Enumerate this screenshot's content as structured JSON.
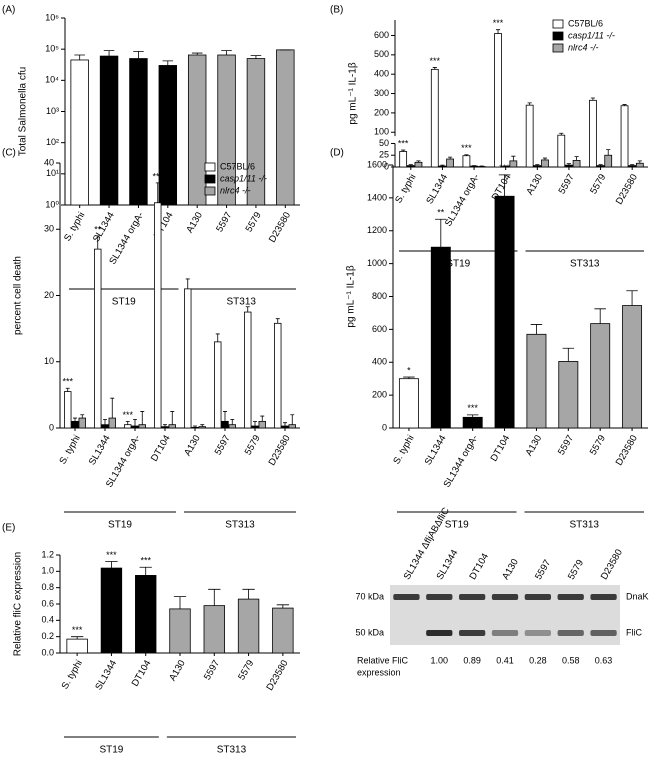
{
  "chart_data": [
    {
      "type": "bar",
      "label": "(A)",
      "ylabel": "Total Salmonella cfu",
      "log": true,
      "categories": [
        "S. typhi",
        "SL1344",
        "SL1344 orgA-",
        "DT104",
        "A130",
        "5597",
        "5579",
        "D23580"
      ],
      "values": [
        45000,
        60000,
        50000,
        30000,
        65000,
        65000,
        50000,
        95000
      ],
      "errors": [
        20000,
        30000,
        35000,
        12000,
        10000,
        25000,
        12000,
        0
      ],
      "colors": [
        "#ffffff",
        "#000000",
        "#000000",
        "#000000",
        "#a6a6a6",
        "#a6a6a6",
        "#a6a6a6",
        "#a6a6a6"
      ],
      "ylim": [
        1,
        1000000
      ],
      "yticks": [
        {
          "value": 1,
          "label": "10⁰"
        },
        {
          "value": 10,
          "label": "10¹"
        },
        {
          "value": 100,
          "label": "10²"
        },
        {
          "value": 1000,
          "label": "10³"
        },
        {
          "value": 10000,
          "label": "10⁴"
        },
        {
          "value": 100000,
          "label": "10⁵"
        },
        {
          "value": 1000000,
          "label": "10⁶"
        }
      ],
      "groups": [
        {
          "name": "ST19",
          "n": 4
        },
        {
          "name": "ST313",
          "n": 4
        }
      ]
    },
    {
      "type": "bar",
      "label": "(B)",
      "ylabel": "pg mL⁻¹ IL-1β",
      "categories": [
        "S. typhi",
        "SL1344",
        "SL1344 orgA-",
        "DT104",
        "A130",
        "5597",
        "5579",
        "D23580"
      ],
      "series": [
        {
          "name": "C57BL/6",
          "color": "#ffffff",
          "values": [
            33,
            425,
            24,
            610,
            240,
            85,
            265,
            237
          ],
          "errors": [
            3,
            10,
            2,
            20,
            12,
            10,
            12,
            6
          ]
        },
        {
          "name": "casp1/11 -/-",
          "color": "#000000",
          "values": [
            3,
            2,
            2,
            1,
            3,
            4,
            3,
            3
          ],
          "errors": [
            2,
            2,
            1,
            1,
            2,
            3,
            2,
            2
          ]
        },
        {
          "name": "nlrc4 -/-",
          "color": "#a6a6a6",
          "values": [
            10,
            17,
            1,
            13,
            15,
            14,
            25,
            8
          ],
          "errors": [
            3,
            4,
            1,
            10,
            4,
            8,
            12,
            5
          ]
        }
      ],
      "annotations": [
        "***",
        "***",
        "***",
        "***",
        null,
        null,
        null,
        null
      ],
      "ylim": [
        0,
        680
      ],
      "ybreak": [
        50,
        80
      ],
      "yticks": [
        0,
        25,
        50,
        100,
        200,
        300,
        400,
        500,
        600
      ],
      "legend": "upper right",
      "groups": [
        {
          "name": "ST19",
          "n": 4
        },
        {
          "name": "ST313",
          "n": 4
        }
      ]
    },
    {
      "type": "bar",
      "label": "(C)",
      "ylabel": "percent cell death",
      "categories": [
        "S. typhi",
        "SL1344",
        "SL1344 orgA-",
        "DT104",
        "A130",
        "5597",
        "5579",
        "D23580"
      ],
      "series": [
        {
          "name": "C57BL/6",
          "color": "#ffffff",
          "values": [
            5.5,
            27,
            0.5,
            34,
            21,
            13,
            17.5,
            15.8
          ],
          "errors": [
            0.5,
            2,
            0.5,
            3,
            1.5,
            1.2,
            0.8,
            0.7
          ]
        },
        {
          "name": "casp1/11 -/-",
          "color": "#000000",
          "values": [
            1,
            0.5,
            0.3,
            0.2,
            0.1,
            1,
            0.3,
            0.3
          ],
          "errors": [
            0.5,
            0.8,
            1,
            0.3,
            0.2,
            1.5,
            0.7,
            0.5
          ]
        },
        {
          "name": "nlrc4 -/-",
          "color": "#a6a6a6",
          "values": [
            1.5,
            1.5,
            0.5,
            0.5,
            0.2,
            0.5,
            1,
            0.5
          ],
          "errors": [
            0.5,
            3,
            2,
            2,
            0.3,
            0.8,
            0.8,
            1.5
          ]
        }
      ],
      "annotations": [
        "***",
        "**",
        "***",
        "***",
        null,
        null,
        null,
        null
      ],
      "ylim": [
        0,
        40
      ],
      "yticks": [
        0,
        10,
        20,
        30,
        40
      ],
      "legend": "upper right",
      "groups": [
        {
          "name": "ST19",
          "n": 4
        },
        {
          "name": "ST313",
          "n": 4
        }
      ]
    },
    {
      "type": "bar",
      "label": "(D)",
      "ylabel": "pg mL⁻¹ IL-1β",
      "categories": [
        "S. typhi",
        "SL1344",
        "SL1344 orgA-",
        "DT104",
        "A130",
        "5597",
        "5579",
        "D23580"
      ],
      "values": [
        300,
        1100,
        65,
        1410,
        570,
        405,
        635,
        745
      ],
      "errors": [
        10,
        170,
        15,
        130,
        60,
        80,
        90,
        90
      ],
      "colors": [
        "#ffffff",
        "#000000",
        "#000000",
        "#000000",
        "#a6a6a6",
        "#a6a6a6",
        "#a6a6a6",
        "#a6a6a6"
      ],
      "annotations": [
        "*",
        "**",
        "***",
        "***",
        null,
        null,
        null,
        null
      ],
      "ylim": [
        0,
        1600
      ],
      "yticks": [
        0,
        200,
        400,
        600,
        800,
        1000,
        1200,
        1400,
        1600
      ],
      "groups": [
        {
          "name": "ST19",
          "n": 4
        },
        {
          "name": "ST313",
          "n": 4
        }
      ]
    },
    {
      "type": "bar",
      "label": "(E)",
      "ylabel": "Relative fliC expression",
      "categories": [
        "S. typhi",
        "SL1344",
        "DT104",
        "A130",
        "5597",
        "5579",
        "D23580"
      ],
      "values": [
        0.17,
        1.04,
        0.95,
        0.54,
        0.58,
        0.66,
        0.55
      ],
      "errors": [
        0.03,
        0.08,
        0.1,
        0.15,
        0.2,
        0.12,
        0.04
      ],
      "colors": [
        "#ffffff",
        "#000000",
        "#000000",
        "#a6a6a6",
        "#a6a6a6",
        "#a6a6a6",
        "#a6a6a6"
      ],
      "annotations": [
        "***",
        "***",
        "***",
        null,
        null,
        null,
        null
      ],
      "ylim": [
        0,
        1.2
      ],
      "yticks": [
        {
          "value": 0,
          "label": "0.0"
        },
        0.2,
        0.4,
        0.6,
        0.8,
        {
          "value": 1,
          "label": "1.0"
        },
        1.2
      ],
      "groups": [
        {
          "name": "ST19",
          "n": 3
        },
        {
          "name": "ST313",
          "n": 4
        }
      ]
    },
    {
      "type": "blot",
      "lanes": [
        "SL1344 ΔfljABΔfliC",
        "SL1344",
        "DT104",
        "A130",
        "5597",
        "5579",
        "D23580"
      ],
      "markers": [
        "70 kDa",
        "50 kDa"
      ],
      "bands": [
        "DnaK",
        "FliC"
      ],
      "value_title": [
        "Relative  FliC",
        "expression"
      ],
      "values": [
        null,
        1,
        0.89,
        0.41,
        0.28,
        0.58,
        0.63
      ],
      "value_labels": [
        null,
        "1.00",
        "0.89",
        "0.41",
        "0.28",
        "0.58",
        "0.63"
      ]
    }
  ]
}
